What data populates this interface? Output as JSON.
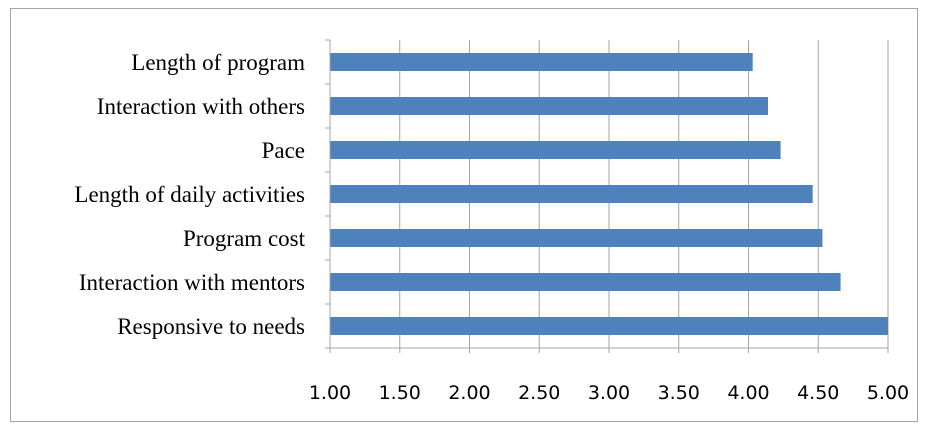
{
  "chart_data": {
    "type": "bar",
    "orientation": "horizontal",
    "categories": [
      "Length of program",
      "Interaction with others",
      "Pace",
      "Length of daily activities",
      "Program cost",
      "Interaction with mentors",
      "Responsive to needs"
    ],
    "values": [
      4.03,
      4.14,
      4.23,
      4.46,
      4.53,
      4.66,
      5.0
    ],
    "xlim": [
      1.0,
      5.0
    ],
    "xticks": [
      "1.00",
      "1.50",
      "2.00",
      "2.50",
      "3.00",
      "3.50",
      "4.00",
      "4.50",
      "5.00"
    ],
    "grid": "vertical",
    "bar_color": "#4f81bd",
    "grid_color": "#a6a6a6",
    "title": "",
    "xlabel": "",
    "ylabel": "",
    "legend": "none"
  }
}
